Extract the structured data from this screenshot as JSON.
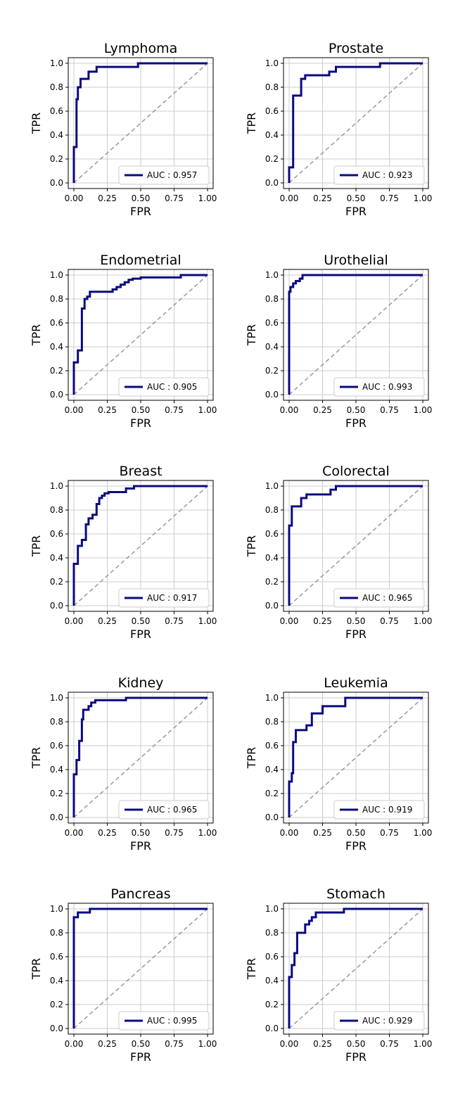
{
  "colors": {
    "roc": "#0a0a80",
    "diagonal": "#999999",
    "grid": "#cccccc",
    "axes": "#000000"
  },
  "chart_data": [
    {
      "type": "line",
      "title": "Lymphoma",
      "xlabel": "FPR",
      "ylabel": "TPR",
      "xlim": [
        0,
        1
      ],
      "ylim": [
        0,
        1
      ],
      "xticks": [
        "0.00",
        "0.25",
        "0.50",
        "0.75",
        "1.00"
      ],
      "yticks": [
        "0.0",
        "0.2",
        "0.4",
        "0.6",
        "0.8",
        "1.0"
      ],
      "grid": true,
      "legend_position": "lower-right",
      "legend_label": "AUC : 0.957",
      "auc": 0.957,
      "series": [
        {
          "name": "AUC : 0.957",
          "x": [
            0,
            0,
            0.02,
            0.02,
            0.03,
            0.03,
            0.05,
            0.05,
            0.11,
            0.11,
            0.17,
            0.17,
            0.48,
            0.48,
            1.0
          ],
          "y": [
            0,
            0.3,
            0.3,
            0.7,
            0.7,
            0.8,
            0.8,
            0.87,
            0.87,
            0.93,
            0.93,
            0.97,
            0.97,
            1.0,
            1.0
          ]
        }
      ]
    },
    {
      "type": "line",
      "title": "Prostate",
      "xlabel": "FPR",
      "ylabel": "TPR",
      "xlim": [
        0,
        1
      ],
      "ylim": [
        0,
        1
      ],
      "xticks": [
        "0.00",
        "0.25",
        "0.50",
        "0.75",
        "1.00"
      ],
      "yticks": [
        "0.0",
        "0.2",
        "0.4",
        "0.6",
        "0.8",
        "1.0"
      ],
      "grid": true,
      "legend_position": "lower-right",
      "legend_label": "AUC : 0.923",
      "auc": 0.923,
      "series": [
        {
          "name": "AUC : 0.923",
          "x": [
            0,
            0,
            0.03,
            0.03,
            0.09,
            0.09,
            0.12,
            0.12,
            0.3,
            0.3,
            0.35,
            0.35,
            0.68,
            0.68,
            1.0
          ],
          "y": [
            0,
            0.13,
            0.13,
            0.73,
            0.73,
            0.87,
            0.87,
            0.9,
            0.9,
            0.93,
            0.93,
            0.97,
            0.97,
            1.0,
            1.0
          ]
        }
      ]
    },
    {
      "type": "line",
      "title": "Endometrial",
      "xlabel": "FPR",
      "ylabel": "TPR",
      "xlim": [
        0,
        1
      ],
      "ylim": [
        0,
        1
      ],
      "xticks": [
        "0.00",
        "0.25",
        "0.50",
        "0.75",
        "1.00"
      ],
      "yticks": [
        "0.0",
        "0.2",
        "0.4",
        "0.6",
        "0.8",
        "1.0"
      ],
      "grid": true,
      "legend_position": "lower-right",
      "legend_label": "AUC : 0.905",
      "auc": 0.905,
      "series": [
        {
          "name": "AUC : 0.905",
          "x": [
            0,
            0,
            0.03,
            0.03,
            0.06,
            0.06,
            0.08,
            0.08,
            0.1,
            0.1,
            0.12,
            0.12,
            0.29,
            0.29,
            0.32,
            0.32,
            0.35,
            0.35,
            0.38,
            0.38,
            0.41,
            0.41,
            0.44,
            0.44,
            0.5,
            0.5,
            0.8,
            0.8,
            1.0
          ],
          "y": [
            0,
            0.27,
            0.27,
            0.37,
            0.37,
            0.72,
            0.72,
            0.8,
            0.8,
            0.82,
            0.82,
            0.86,
            0.86,
            0.88,
            0.88,
            0.9,
            0.9,
            0.92,
            0.92,
            0.94,
            0.94,
            0.96,
            0.96,
            0.97,
            0.97,
            0.98,
            0.98,
            1.0,
            1.0
          ]
        }
      ]
    },
    {
      "type": "line",
      "title": "Urothelial",
      "xlabel": "FPR",
      "ylabel": "TPR",
      "xlim": [
        0,
        1
      ],
      "ylim": [
        0,
        1
      ],
      "xticks": [
        "0.00",
        "0.25",
        "0.50",
        "0.75",
        "1.00"
      ],
      "yticks": [
        "0.0",
        "0.2",
        "0.4",
        "0.6",
        "0.8",
        "1.0"
      ],
      "grid": true,
      "legend_position": "lower-right",
      "legend_label": "AUC : 0.993",
      "auc": 0.993,
      "series": [
        {
          "name": "AUC : 0.993",
          "x": [
            0,
            0,
            0.01,
            0.01,
            0.03,
            0.03,
            0.05,
            0.05,
            0.08,
            0.08,
            0.1,
            0.1,
            1.0
          ],
          "y": [
            0,
            0.86,
            0.86,
            0.9,
            0.9,
            0.93,
            0.93,
            0.95,
            0.95,
            0.97,
            0.97,
            1.0,
            1.0
          ]
        }
      ]
    },
    {
      "type": "line",
      "title": "Breast",
      "xlabel": "FPR",
      "ylabel": "TPR",
      "xlim": [
        0,
        1
      ],
      "ylim": [
        0,
        1
      ],
      "xticks": [
        "0.00",
        "0.25",
        "0.50",
        "0.75",
        "1.00"
      ],
      "yticks": [
        "0.0",
        "0.2",
        "0.4",
        "0.6",
        "0.8",
        "1.0"
      ],
      "grid": true,
      "legend_position": "lower-right",
      "legend_label": "AUC : 0.917",
      "auc": 0.917,
      "series": [
        {
          "name": "AUC : 0.917",
          "x": [
            0,
            0,
            0.03,
            0.03,
            0.06,
            0.06,
            0.09,
            0.09,
            0.11,
            0.11,
            0.14,
            0.14,
            0.17,
            0.17,
            0.19,
            0.19,
            0.21,
            0.21,
            0.23,
            0.23,
            0.26,
            0.26,
            0.39,
            0.39,
            0.45,
            0.45,
            1.0
          ],
          "y": [
            0,
            0.35,
            0.35,
            0.5,
            0.5,
            0.55,
            0.55,
            0.68,
            0.68,
            0.73,
            0.73,
            0.76,
            0.76,
            0.85,
            0.85,
            0.9,
            0.9,
            0.92,
            0.92,
            0.94,
            0.94,
            0.95,
            0.95,
            0.98,
            0.98,
            1.0,
            1.0
          ]
        }
      ]
    },
    {
      "type": "line",
      "title": "Colorectal",
      "xlabel": "FPR",
      "ylabel": "TPR",
      "xlim": [
        0,
        1
      ],
      "ylim": [
        0,
        1
      ],
      "xticks": [
        "0.00",
        "0.25",
        "0.50",
        "0.75",
        "1.00"
      ],
      "yticks": [
        "0.0",
        "0.2",
        "0.4",
        "0.6",
        "0.8",
        "1.0"
      ],
      "grid": true,
      "legend_position": "lower-right",
      "legend_label": "AUC : 0.965",
      "auc": 0.965,
      "series": [
        {
          "name": "AUC : 0.965",
          "x": [
            0,
            0,
            0.02,
            0.02,
            0.09,
            0.09,
            0.13,
            0.13,
            0.31,
            0.31,
            0.35,
            0.35,
            1.0
          ],
          "y": [
            0,
            0.67,
            0.67,
            0.83,
            0.83,
            0.9,
            0.9,
            0.93,
            0.93,
            0.97,
            0.97,
            1.0,
            1.0
          ]
        }
      ]
    },
    {
      "type": "line",
      "title": "Kidney",
      "xlabel": "FPR",
      "ylabel": "TPR",
      "xlim": [
        0,
        1
      ],
      "ylim": [
        0,
        1
      ],
      "xticks": [
        "0.00",
        "0.25",
        "0.50",
        "0.75",
        "1.00"
      ],
      "yticks": [
        "0.0",
        "0.2",
        "0.4",
        "0.6",
        "0.8",
        "1.0"
      ],
      "grid": true,
      "legend_position": "lower-right",
      "legend_label": "AUC : 0.965",
      "auc": 0.965,
      "series": [
        {
          "name": "AUC : 0.965",
          "x": [
            0,
            0,
            0.02,
            0.02,
            0.04,
            0.04,
            0.06,
            0.06,
            0.07,
            0.07,
            0.11,
            0.11,
            0.13,
            0.13,
            0.16,
            0.16,
            0.39,
            0.39,
            1.0
          ],
          "y": [
            0,
            0.36,
            0.36,
            0.48,
            0.48,
            0.64,
            0.64,
            0.82,
            0.82,
            0.9,
            0.9,
            0.93,
            0.93,
            0.96,
            0.96,
            0.98,
            0.98,
            1.0,
            1.0
          ]
        }
      ]
    },
    {
      "type": "line",
      "title": "Leukemia",
      "xlabel": "FPR",
      "ylabel": "TPR",
      "xlim": [
        0,
        1
      ],
      "ylim": [
        0,
        1
      ],
      "xticks": [
        "0.00",
        "0.25",
        "0.50",
        "0.75",
        "1.00"
      ],
      "yticks": [
        "0.0",
        "0.2",
        "0.4",
        "0.6",
        "0.8",
        "1.0"
      ],
      "grid": true,
      "legend_position": "lower-right",
      "legend_label": "AUC : 0.919",
      "auc": 0.919,
      "series": [
        {
          "name": "AUC : 0.919",
          "x": [
            0,
            0,
            0.02,
            0.02,
            0.03,
            0.03,
            0.05,
            0.05,
            0.13,
            0.13,
            0.17,
            0.17,
            0.25,
            0.25,
            0.42,
            0.42,
            1.0
          ],
          "y": [
            0,
            0.3,
            0.3,
            0.37,
            0.37,
            0.63,
            0.63,
            0.73,
            0.73,
            0.77,
            0.77,
            0.87,
            0.87,
            0.93,
            0.93,
            1.0,
            1.0
          ]
        }
      ]
    },
    {
      "type": "line",
      "title": "Pancreas",
      "xlabel": "FPR",
      "ylabel": "TPR",
      "xlim": [
        0,
        1
      ],
      "ylim": [
        0,
        1
      ],
      "xticks": [
        "0.00",
        "0.25",
        "0.50",
        "0.75",
        "1.00"
      ],
      "yticks": [
        "0.0",
        "0.2",
        "0.4",
        "0.6",
        "0.8",
        "1.0"
      ],
      "grid": true,
      "legend_position": "lower-right",
      "legend_label": "AUC : 0.995",
      "auc": 0.995,
      "series": [
        {
          "name": "AUC : 0.995",
          "x": [
            0,
            0,
            0.03,
            0.03,
            0.12,
            0.12,
            1.0
          ],
          "y": [
            0,
            0.93,
            0.93,
            0.97,
            0.97,
            1.0,
            1.0
          ]
        }
      ]
    },
    {
      "type": "line",
      "title": "Stomach",
      "xlabel": "FPR",
      "ylabel": "TPR",
      "xlim": [
        0,
        1
      ],
      "ylim": [
        0,
        1
      ],
      "xticks": [
        "0.00",
        "0.25",
        "0.50",
        "0.75",
        "1.00"
      ],
      "yticks": [
        "0.0",
        "0.2",
        "0.4",
        "0.6",
        "0.8",
        "1.0"
      ],
      "grid": true,
      "legend_position": "lower-right",
      "legend_label": "AUC : 0.929",
      "auc": 0.929,
      "series": [
        {
          "name": "AUC : 0.929",
          "x": [
            0,
            0,
            0.02,
            0.02,
            0.04,
            0.04,
            0.06,
            0.06,
            0.12,
            0.12,
            0.15,
            0.15,
            0.17,
            0.17,
            0.2,
            0.2,
            0.41,
            0.41,
            0.65,
            0.65,
            1.0
          ],
          "y": [
            0,
            0.43,
            0.43,
            0.53,
            0.53,
            0.63,
            0.63,
            0.8,
            0.8,
            0.87,
            0.87,
            0.9,
            0.9,
            0.93,
            0.93,
            0.97,
            0.97,
            1.0,
            1.0,
            1.0,
            1.0
          ]
        }
      ]
    }
  ]
}
